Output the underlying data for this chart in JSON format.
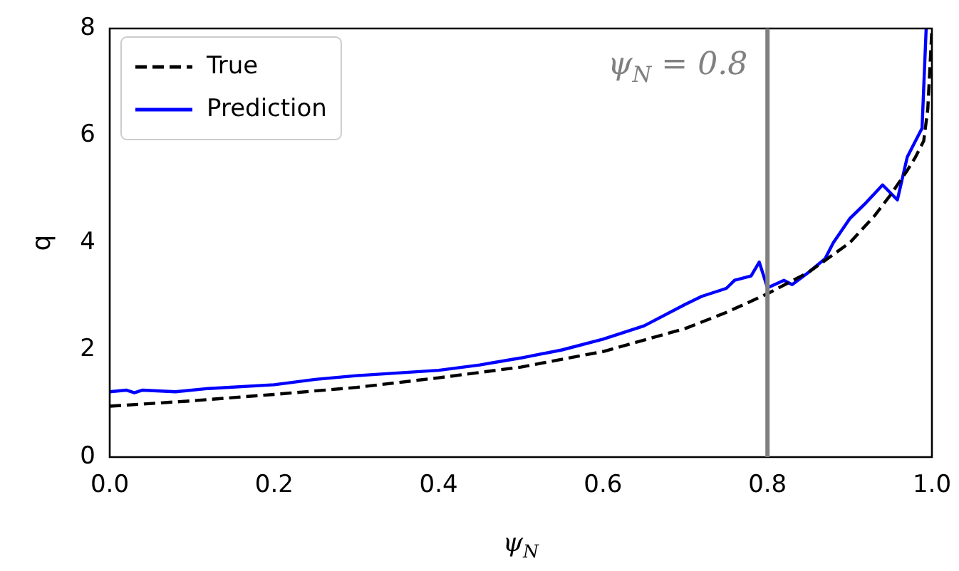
{
  "chart_data": {
    "type": "line",
    "xlabel": "ψ$_{N}$",
    "ylabel": "q",
    "xlim": [
      0,
      1
    ],
    "xticks": [
      {
        "value": 0,
        "label": "0.0"
      },
      0.2,
      0.4,
      0.6,
      0.8,
      {
        "value": 1,
        "label": "1.0"
      }
    ],
    "ylim": [
      0,
      8
    ],
    "yticks": [
      0,
      2,
      4,
      6,
      8
    ],
    "grid": false,
    "legend": "top left",
    "marker": "none",
    "series": [
      {
        "name": "True",
        "color": "#000000",
        "line_style": "dashed",
        "x": [
          0,
          0.1,
          0.2,
          0.3,
          0.4,
          0.5,
          0.6,
          0.7,
          0.75,
          0.8,
          0.85,
          0.9,
          0.93,
          0.95,
          0.97,
          0.98,
          0.99,
          0.995,
          1.0
        ],
        "values": [
          0.95,
          1.05,
          1.17,
          1.3,
          1.48,
          1.68,
          1.97,
          2.4,
          2.7,
          3.05,
          3.45,
          4.0,
          4.5,
          4.9,
          5.35,
          5.6,
          5.9,
          6.5,
          8.0
        ]
      },
      {
        "name": "Prediction",
        "color": "#0000ff",
        "line_style": "solid",
        "x": [
          0,
          0.02,
          0.03,
          0.04,
          0.08,
          0.12,
          0.2,
          0.25,
          0.3,
          0.4,
          0.45,
          0.5,
          0.55,
          0.6,
          0.65,
          0.7,
          0.72,
          0.75,
          0.76,
          0.78,
          0.79,
          0.8,
          0.82,
          0.83,
          0.85,
          0.87,
          0.88,
          0.9,
          0.92,
          0.94,
          0.958,
          0.97,
          0.988,
          0.993
        ],
        "values": [
          1.22,
          1.25,
          1.2,
          1.25,
          1.22,
          1.28,
          1.35,
          1.45,
          1.52,
          1.62,
          1.72,
          1.85,
          2.0,
          2.2,
          2.45,
          2.85,
          3.0,
          3.15,
          3.3,
          3.38,
          3.64,
          3.16,
          3.3,
          3.22,
          3.45,
          3.7,
          4.0,
          4.45,
          4.75,
          5.08,
          4.8,
          5.6,
          6.14,
          8.0
        ]
      }
    ],
    "ref_lines": [
      {
        "axis": "x",
        "value": 0.8,
        "label": "ψ$_{N}$ = 0.8",
        "color": "#808080"
      }
    ]
  }
}
